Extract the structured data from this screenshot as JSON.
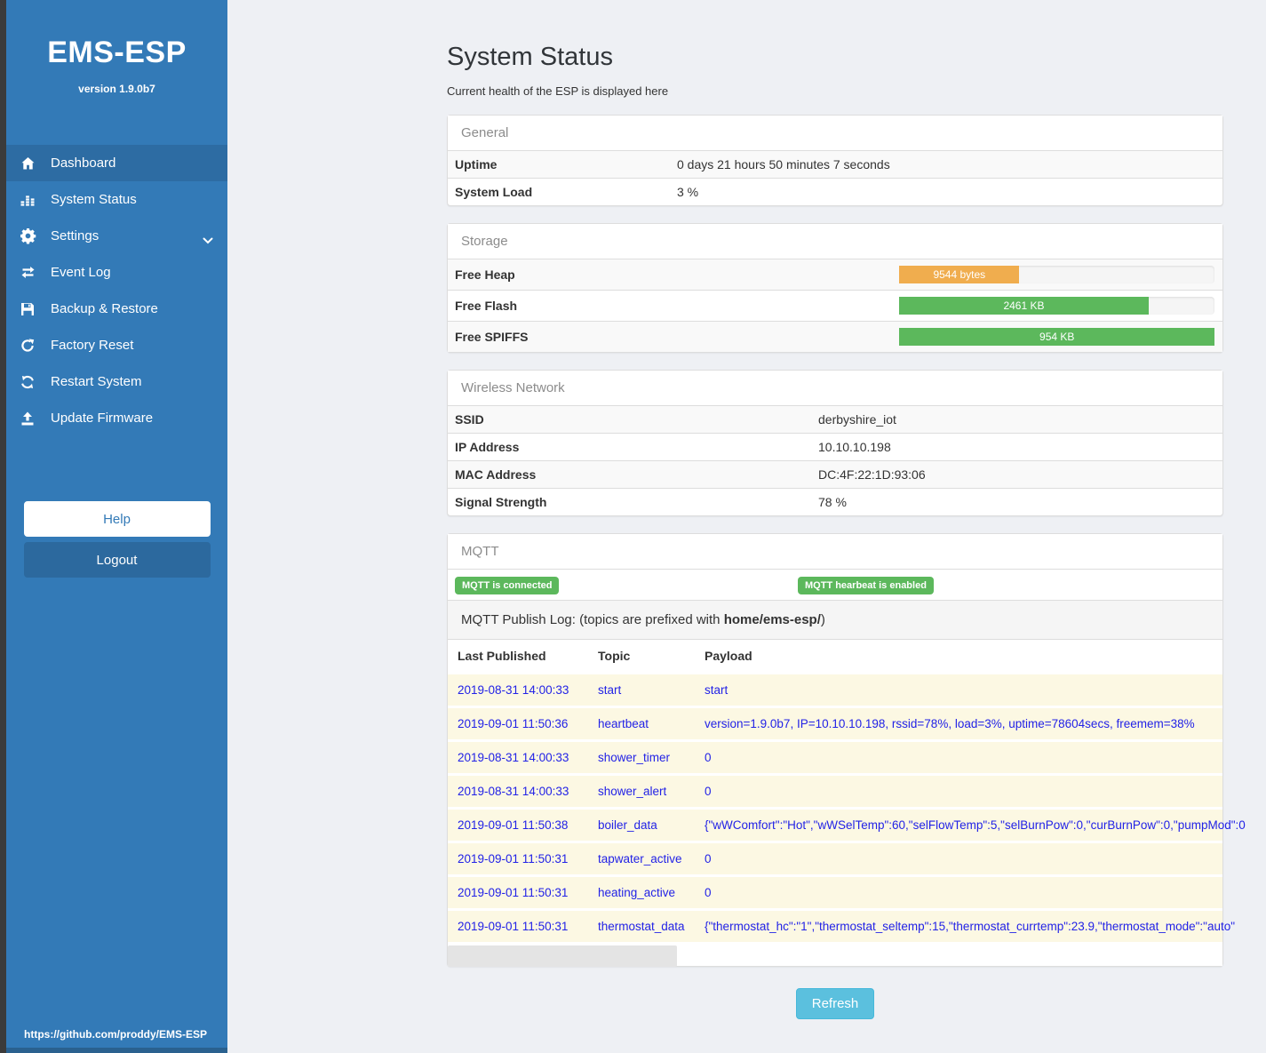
{
  "sidebar": {
    "brand": "EMS-ESP",
    "version": "version 1.9.0b7",
    "items": [
      {
        "label": "Dashboard",
        "icon": "home-icon",
        "active": true
      },
      {
        "label": "System Status",
        "icon": "stats-icon",
        "active": false
      },
      {
        "label": "Settings",
        "icon": "gear-icon",
        "active": false,
        "chevron": "chevron-down-icon"
      },
      {
        "label": "Event Log",
        "icon": "exchange-icon",
        "active": false
      },
      {
        "label": "Backup & Restore",
        "icon": "save-icon",
        "active": false
      },
      {
        "label": "Factory Reset",
        "icon": "rotate-icon",
        "active": false
      },
      {
        "label": "Restart System",
        "icon": "refresh-icon",
        "active": false
      },
      {
        "label": "Update Firmware",
        "icon": "upload-icon",
        "active": false
      }
    ],
    "help_label": "Help",
    "logout_label": "Logout",
    "footer_link": "https://github.com/proddy/EMS-ESP"
  },
  "page": {
    "title": "System Status",
    "subtitle": "Current health of the ESP is displayed here",
    "refresh_label": "Refresh"
  },
  "general": {
    "heading": "General",
    "rows": [
      {
        "label": "Uptime",
        "value": "0 days 21 hours 50 minutes 7 seconds"
      },
      {
        "label": "System Load",
        "value": "3 %"
      }
    ]
  },
  "storage": {
    "heading": "Storage",
    "rows": [
      {
        "label": "Free Heap",
        "value": "9544 bytes",
        "percent": 38,
        "color": "#f0ad4e"
      },
      {
        "label": "Free Flash",
        "value": "2461 KB",
        "percent": 79,
        "color": "#5cb85c"
      },
      {
        "label": "Free SPIFFS",
        "value": "954 KB",
        "percent": 100,
        "color": "#5cb85c"
      }
    ]
  },
  "wireless": {
    "heading": "Wireless Network",
    "rows": [
      {
        "label": "SSID",
        "value": "derbyshire_iot"
      },
      {
        "label": "IP Address",
        "value": "10.10.10.198"
      },
      {
        "label": "MAC Address",
        "value": "DC:4F:22:1D:93:06"
      },
      {
        "label": "Signal Strength",
        "value": "78 %"
      }
    ]
  },
  "mqtt": {
    "heading": "MQTT",
    "badges": [
      "MQTT is connected",
      "MQTT hearbeat is enabled"
    ],
    "publish_log": {
      "prefix": "MQTT Publish Log: (topics are prefixed with ",
      "bold": "home/ems-esp/",
      "suffix": ")"
    },
    "table": {
      "headers": [
        "Last Published",
        "Topic",
        "Payload"
      ],
      "rows": [
        {
          "time": "2019-08-31 14:00:33",
          "topic": "start",
          "payload": "start"
        },
        {
          "time": "2019-09-01 11:50:36",
          "topic": "heartbeat",
          "payload": "version=1.9.0b7, IP=10.10.10.198, rssid=78%, load=3%, uptime=78604secs, freemem=38%"
        },
        {
          "time": "2019-08-31 14:00:33",
          "topic": "shower_timer",
          "payload": "0"
        },
        {
          "time": "2019-08-31 14:00:33",
          "topic": "shower_alert",
          "payload": "0"
        },
        {
          "time": "2019-09-01 11:50:38",
          "topic": "boiler_data",
          "payload": "{\"wWComfort\":\"Hot\",\"wWSelTemp\":60,\"selFlowTemp\":5,\"selBurnPow\":0,\"curBurnPow\":0,\"pumpMod\":0"
        },
        {
          "time": "2019-09-01 11:50:31",
          "topic": "tapwater_active",
          "payload": "0"
        },
        {
          "time": "2019-09-01 11:50:31",
          "topic": "heating_active",
          "payload": "0"
        },
        {
          "time": "2019-09-01 11:50:31",
          "topic": "thermostat_data",
          "payload": "{\"thermostat_hc\":\"1\",\"thermostat_seltemp\":15,\"thermostat_currtemp\":23.9,\"thermostat_mode\":\"auto\""
        }
      ]
    }
  },
  "colors": {
    "sidebar_blue": "#337ab7",
    "sidebar_active": "#2d6ca3",
    "badge_green": "#5cb85c",
    "bar_orange": "#f0ad4e",
    "bar_green": "#5cb85c",
    "refresh_blue": "#5bc0de",
    "log_text_blue": "#2222e6",
    "log_row_cream": "#fcf8e3"
  }
}
